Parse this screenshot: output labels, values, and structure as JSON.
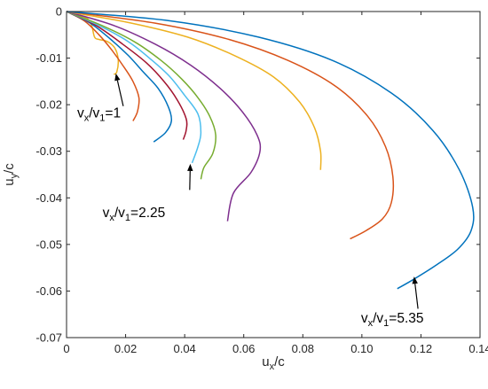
{
  "chart_data": {
    "type": "line",
    "xlabel": {
      "main": "u",
      "sub": "x",
      "rest": "/c"
    },
    "ylabel": {
      "main": "u",
      "sub": "y",
      "rest": "/c"
    },
    "xlim": [
      0,
      0.14
    ],
    "ylim": [
      -0.07,
      0
    ],
    "xticks": [
      0,
      0.02,
      0.04,
      0.06,
      0.08,
      0.1,
      0.12,
      0.14
    ],
    "xtick_labels": [
      "0",
      "0.02",
      "0.04",
      "0.06",
      "0.08",
      "0.10",
      "0.12",
      "0.14"
    ],
    "yticks": [
      0,
      -0.01,
      -0.02,
      -0.03,
      -0.04,
      -0.05,
      -0.06,
      -0.07
    ],
    "ytick_labels": [
      "0",
      "-0.01",
      "-0.02",
      "-0.03",
      "-0.04",
      "-0.05",
      "-0.06",
      "-0.07"
    ],
    "grid": false,
    "series": [
      {
        "color": "#EDB120",
        "points": [
          [
            0,
            0
          ],
          [
            0.004,
            -0.0008
          ],
          [
            0.007,
            -0.0015
          ],
          [
            0.0085,
            -0.003
          ],
          [
            0.0095,
            -0.0055
          ],
          [
            0.011,
            -0.006
          ],
          [
            0.014,
            -0.0065
          ],
          [
            0.0165,
            -0.008
          ],
          [
            0.0175,
            -0.0105
          ],
          [
            0.017,
            -0.013
          ],
          [
            0.016,
            -0.0135
          ]
        ]
      },
      {
        "color": "#D95319",
        "points": [
          [
            0,
            0
          ],
          [
            0.006,
            -0.002
          ],
          [
            0.011,
            -0.005
          ],
          [
            0.015,
            -0.008
          ],
          [
            0.019,
            -0.0115
          ],
          [
            0.0225,
            -0.015
          ],
          [
            0.0245,
            -0.0185
          ],
          [
            0.024,
            -0.0215
          ],
          [
            0.0225,
            -0.0235
          ]
        ]
      },
      {
        "color": "#0072BD",
        "points": [
          [
            0,
            0
          ],
          [
            0.008,
            -0.0025
          ],
          [
            0.015,
            -0.006
          ],
          [
            0.021,
            -0.0095
          ],
          [
            0.026,
            -0.013
          ],
          [
            0.031,
            -0.0165
          ],
          [
            0.0345,
            -0.0205
          ],
          [
            0.0355,
            -0.0235
          ],
          [
            0.0335,
            -0.026
          ],
          [
            0.0295,
            -0.028
          ]
        ]
      },
      {
        "color": "#A2142F",
        "points": [
          [
            0,
            0
          ],
          [
            0.01,
            -0.003
          ],
          [
            0.019,
            -0.007
          ],
          [
            0.027,
            -0.011
          ],
          [
            0.033,
            -0.015
          ],
          [
            0.0375,
            -0.019
          ],
          [
            0.0405,
            -0.023
          ],
          [
            0.0405,
            -0.0255
          ],
          [
            0.0395,
            -0.0275
          ]
        ]
      },
      {
        "color": "#4DBEEE",
        "points": [
          [
            0,
            0
          ],
          [
            0.011,
            -0.003
          ],
          [
            0.021,
            -0.0065
          ],
          [
            0.029,
            -0.0105
          ],
          [
            0.035,
            -0.014
          ],
          [
            0.04,
            -0.018
          ],
          [
            0.0445,
            -0.022
          ],
          [
            0.0455,
            -0.026
          ],
          [
            0.0445,
            -0.029
          ],
          [
            0.0425,
            -0.0325
          ]
        ]
      },
      {
        "color": "#77AC30",
        "points": [
          [
            0,
            0
          ],
          [
            0.012,
            -0.003
          ],
          [
            0.023,
            -0.0065
          ],
          [
            0.032,
            -0.0105
          ],
          [
            0.039,
            -0.0145
          ],
          [
            0.0445,
            -0.0185
          ],
          [
            0.0485,
            -0.0225
          ],
          [
            0.0505,
            -0.0265
          ],
          [
            0.0495,
            -0.0305
          ],
          [
            0.0465,
            -0.0335
          ],
          [
            0.0455,
            -0.036
          ]
        ]
      },
      {
        "color": "#7E2F8E",
        "points": [
          [
            0,
            0
          ],
          [
            0.016,
            -0.003
          ],
          [
            0.03,
            -0.007
          ],
          [
            0.042,
            -0.0115
          ],
          [
            0.052,
            -0.0165
          ],
          [
            0.0595,
            -0.0215
          ],
          [
            0.0645,
            -0.0265
          ],
          [
            0.0655,
            -0.03
          ],
          [
            0.0625,
            -0.0345
          ],
          [
            0.0565,
            -0.039
          ],
          [
            0.0545,
            -0.045
          ]
        ]
      },
      {
        "color": "#EDB120",
        "points": [
          [
            0,
            0
          ],
          [
            0.022,
            -0.0025
          ],
          [
            0.041,
            -0.0055
          ],
          [
            0.057,
            -0.0095
          ],
          [
            0.07,
            -0.014
          ],
          [
            0.079,
            -0.0195
          ],
          [
            0.084,
            -0.025
          ],
          [
            0.086,
            -0.03
          ],
          [
            0.086,
            -0.034
          ]
        ]
      },
      {
        "color": "#D95319",
        "points": [
          [
            0,
            0
          ],
          [
            0.03,
            -0.0025
          ],
          [
            0.055,
            -0.006
          ],
          [
            0.075,
            -0.0105
          ],
          [
            0.091,
            -0.016
          ],
          [
            0.102,
            -0.0225
          ],
          [
            0.108,
            -0.029
          ],
          [
            0.1105,
            -0.0355
          ],
          [
            0.11,
            -0.041
          ],
          [
            0.107,
            -0.0445
          ],
          [
            0.1015,
            -0.047
          ],
          [
            0.096,
            -0.0488
          ]
        ]
      },
      {
        "color": "#0072BD",
        "points": [
          [
            0,
            0
          ],
          [
            0.035,
            -0.002
          ],
          [
            0.065,
            -0.0055
          ],
          [
            0.09,
            -0.0105
          ],
          [
            0.11,
            -0.0175
          ],
          [
            0.124,
            -0.0255
          ],
          [
            0.133,
            -0.034
          ],
          [
            0.1375,
            -0.042
          ],
          [
            0.137,
            -0.047
          ],
          [
            0.1325,
            -0.051
          ],
          [
            0.125,
            -0.0545
          ],
          [
            0.1175,
            -0.0575
          ],
          [
            0.112,
            -0.0595
          ]
        ]
      }
    ],
    "annotations": [
      {
        "label": {
          "v": "v",
          "vsub": "x",
          "slash": "/v",
          "onesub": "1",
          "eq": "=1"
        },
        "text_at": [
          0.0036,
          -0.0227
        ],
        "arrow_from": [
          0.0192,
          -0.0203
        ],
        "arrow_to": [
          0.0167,
          -0.0133
        ]
      },
      {
        "label": {
          "v": "v",
          "vsub": "x",
          "slash": "/v",
          "onesub": "1",
          "eq": "=2.25"
        },
        "text_at": [
          0.0122,
          -0.0441
        ],
        "arrow_from": [
          0.0417,
          -0.0383
        ],
        "arrow_to": [
          0.0419,
          -0.0327
        ]
      },
      {
        "label": {
          "v": "v",
          "vsub": "x",
          "slash": "/v",
          "onesub": "1",
          "eq": "=5.35"
        },
        "text_at": [
          0.0997,
          -0.0668
        ],
        "arrow_from": [
          0.119,
          -0.0638
        ],
        "arrow_to": [
          0.1177,
          -0.0569
        ]
      }
    ]
  }
}
